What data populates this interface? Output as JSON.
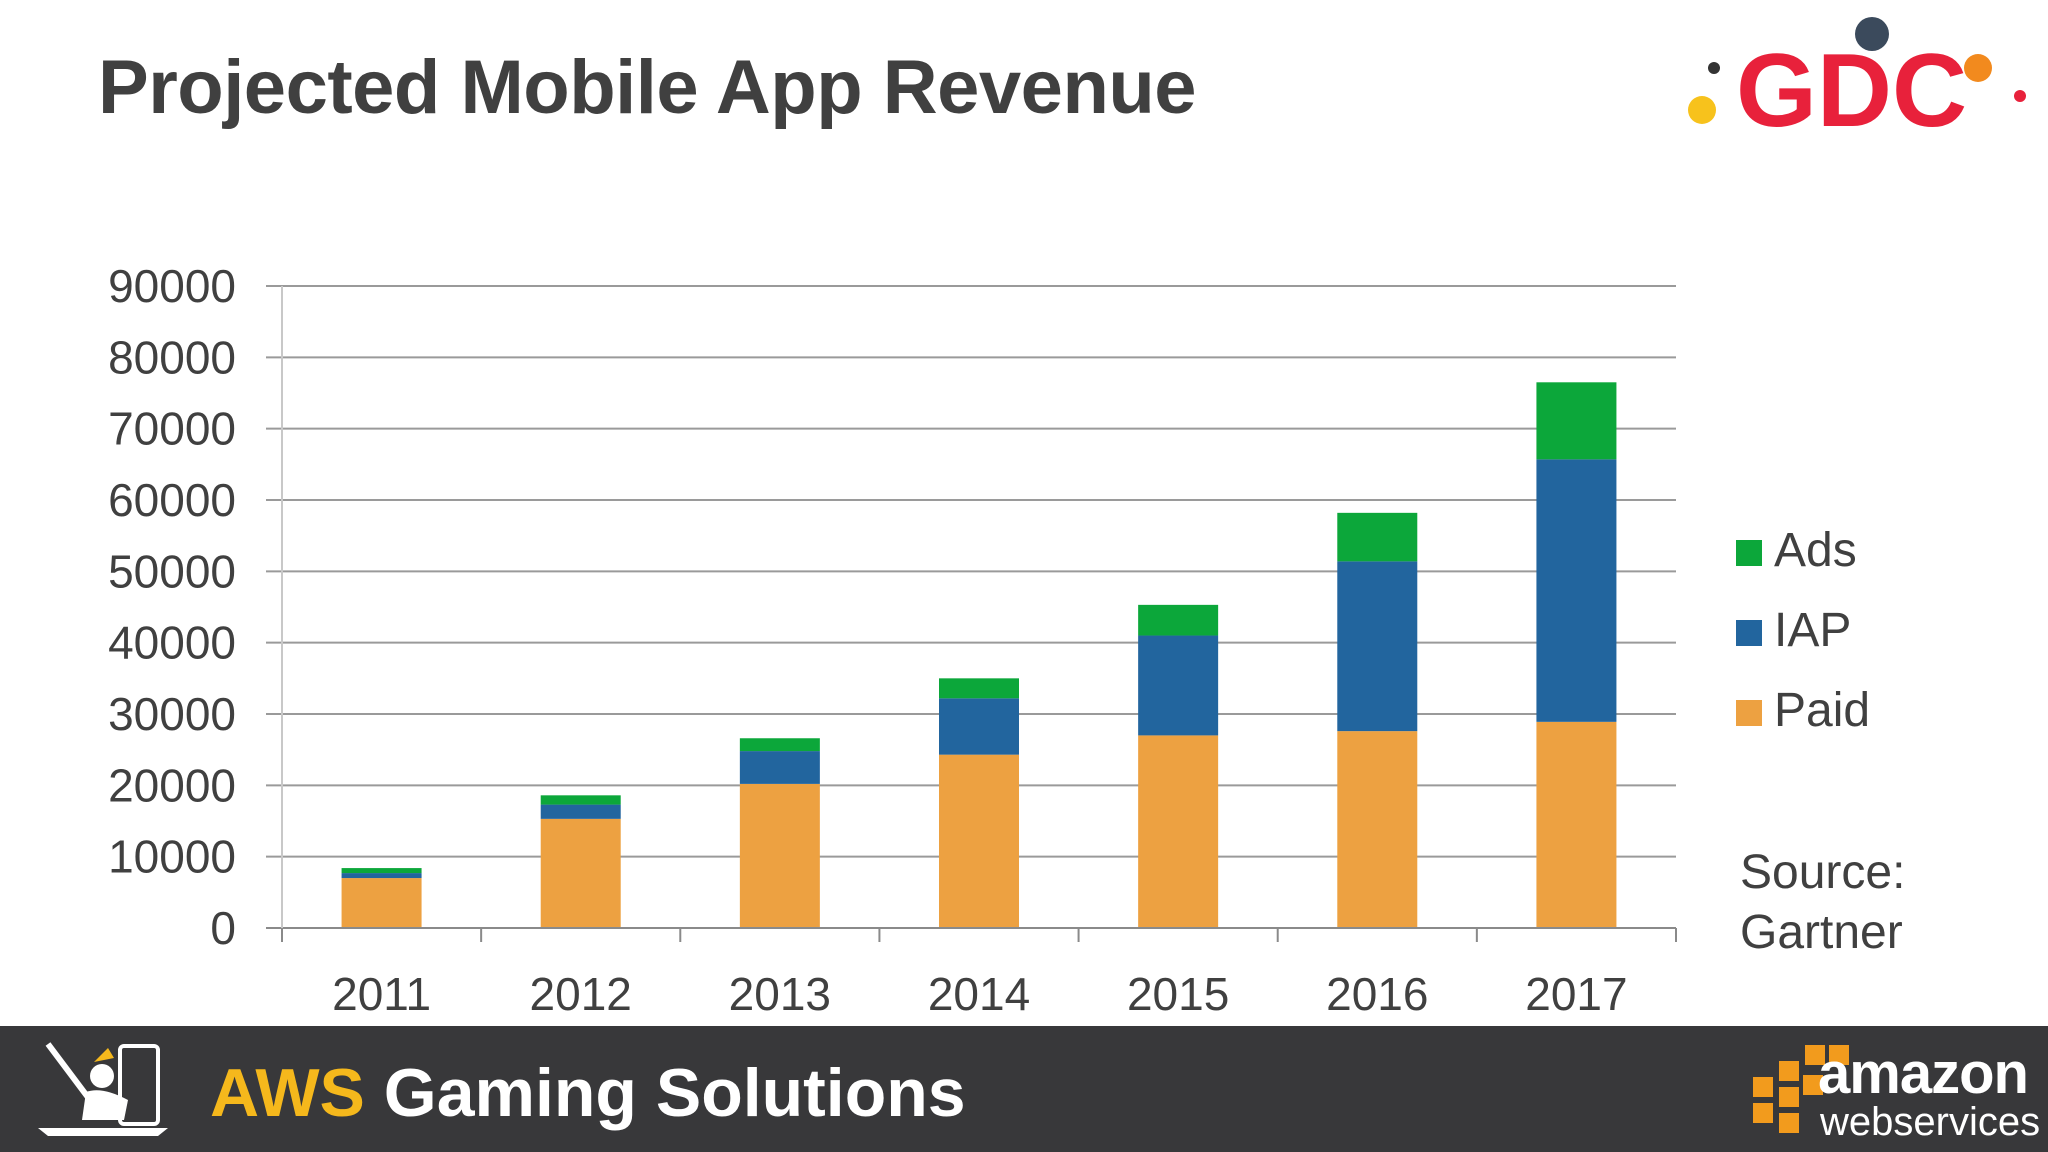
{
  "slide": {
    "title": "Projected Mobile App Revenue",
    "source": "Source:\nGartner"
  },
  "footer": {
    "brand_accent": "AWS",
    "brand_rest": " Gaming Solutions",
    "aws_logo_word": "amazon",
    "aws_logo_sub": "webservices",
    "logo_text": "GDC"
  },
  "colors": {
    "Paid": "#eda141",
    "IAP": "#22659e",
    "Ads": "#0ca73a",
    "text": "#404040",
    "footer_bg": "#38383a",
    "footer_accent": "#f5b81c"
  },
  "chart_data": {
    "type": "bar",
    "stacked": true,
    "categories": [
      "2011",
      "2012",
      "2013",
      "2014",
      "2015",
      "2016",
      "2017"
    ],
    "series": [
      {
        "name": "Paid",
        "values": [
          7000,
          15300,
          20200,
          24300,
          27000,
          27600,
          28900
        ]
      },
      {
        "name": "IAP",
        "values": [
          700,
          2000,
          4600,
          7900,
          14000,
          23800,
          36800
        ]
      },
      {
        "name": "Ads",
        "values": [
          700,
          1300,
          1800,
          2800,
          4300,
          6800,
          10800
        ]
      }
    ],
    "ylim": [
      0,
      90000
    ],
    "yticks": [
      "0",
      "10000",
      "20000",
      "30000",
      "40000",
      "50000",
      "60000",
      "70000",
      "80000",
      "90000"
    ],
    "legend_order": [
      "Ads",
      "IAP",
      "Paid"
    ],
    "legend_position": "right",
    "grid": true
  }
}
